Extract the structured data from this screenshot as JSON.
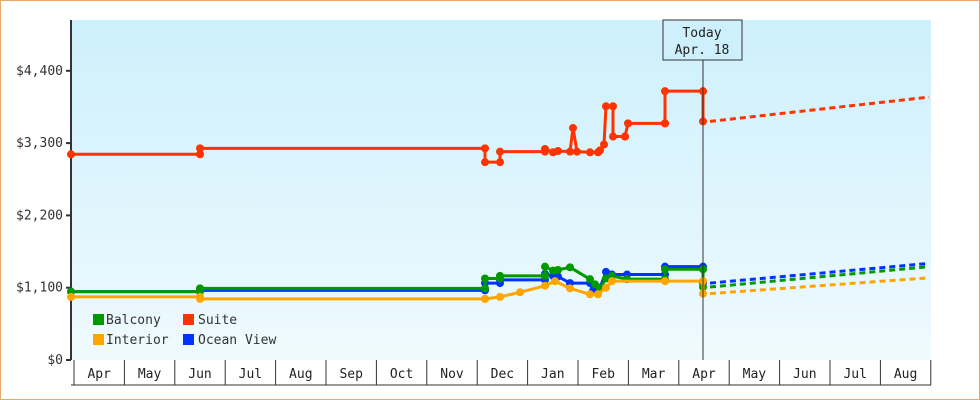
{
  "chart_data": {
    "type": "line",
    "title": "",
    "xlabel": "",
    "ylabel": "",
    "ylim": [
      0,
      4800
    ],
    "y_ticks": [
      "$0",
      "$1,100",
      "$2,200",
      "$3,300",
      "$4,400"
    ],
    "y_tick_values": [
      0,
      1100,
      2200,
      3300,
      4400
    ],
    "x_ticks": [
      "Apr",
      "May",
      "Jun",
      "Jul",
      "Aug",
      "Sep",
      "Oct",
      "Nov",
      "Dec",
      "Jan",
      "Feb",
      "Mar",
      "Apr",
      "May",
      "Jun",
      "Jul",
      "Aug"
    ],
    "grid": false,
    "legend_position": "lower-left inside",
    "today_marker": {
      "line1": "Today",
      "line2": "Apr. 18"
    },
    "legend": [
      {
        "name": "Balcony",
        "color": "#009900"
      },
      {
        "name": "Suite",
        "color": "#ff3300"
      },
      {
        "name": "Interior",
        "color": "#ffa500"
      },
      {
        "name": "Ocean View",
        "color": "#0033ff"
      }
    ],
    "series": [
      {
        "name": "Suite",
        "color": "#ff3300",
        "points": [
          [
            "Apr",
            3130
          ],
          [
            "early Jun",
            3130
          ],
          [
            "early Jun",
            3220
          ],
          [
            "late Nov",
            3220
          ],
          [
            "late Nov",
            3010
          ],
          [
            "early Dec",
            3010
          ],
          [
            "early Dec",
            3170
          ],
          [
            "mid Jan",
            3170
          ],
          [
            "mid Jan",
            3210
          ],
          [
            "Jan",
            3160
          ],
          [
            "Jan",
            3180
          ],
          [
            "late Jan",
            3170
          ],
          [
            "late Jan",
            3530
          ],
          [
            "late Jan",
            3170
          ],
          [
            "early Feb",
            3160
          ],
          [
            "Feb",
            3160
          ],
          [
            "Feb",
            3190
          ],
          [
            "Feb",
            3280
          ],
          [
            "Feb",
            3860
          ],
          [
            "Feb",
            3860
          ],
          [
            "Feb",
            3400
          ],
          [
            "Feb",
            3400
          ],
          [
            "late Feb",
            3400
          ],
          [
            "late Feb",
            3600
          ],
          [
            "Mar",
            3600
          ],
          [
            "late Mar",
            3600
          ],
          [
            "late Mar",
            4090
          ],
          [
            "Apr 18",
            4090
          ],
          [
            "Apr 18",
            3630
          ]
        ],
        "forecast": [
          [
            "Apr 18",
            3630
          ],
          [
            "end Aug",
            4000
          ]
        ]
      },
      {
        "name": "Ocean View",
        "color": "#0033ff",
        "points": [
          [
            "Apr",
            1040
          ],
          [
            "early Jun",
            1040
          ],
          [
            "early Jun",
            1060
          ],
          [
            "late Nov",
            1060
          ],
          [
            "late Nov",
            1170
          ],
          [
            "Dec",
            1170
          ],
          [
            "Dec",
            1220
          ],
          [
            "mid Jan",
            1220
          ],
          [
            "mid Jan",
            1310
          ],
          [
            "Jan",
            1280
          ],
          [
            "Jan",
            1270
          ],
          [
            "early Feb",
            1170
          ],
          [
            "Feb",
            1170
          ],
          [
            "Feb",
            1050
          ],
          [
            "Feb",
            1100
          ],
          [
            "Feb",
            1340
          ],
          [
            "Feb",
            1300
          ],
          [
            "late Feb",
            1300
          ],
          [
            "late Mar",
            1300
          ],
          [
            "late Mar",
            1420
          ],
          [
            "Apr 18",
            1420
          ],
          [
            "Apr 18",
            1170
          ]
        ],
        "forecast": [
          [
            "Apr 18",
            1170
          ],
          [
            "end Aug",
            1470
          ]
        ]
      },
      {
        "name": "Balcony",
        "color": "#009900",
        "points": [
          [
            "Apr",
            1040
          ],
          [
            "early Jun",
            1040
          ],
          [
            "early Jun",
            1090
          ],
          [
            "late Nov",
            1090
          ],
          [
            "late Nov",
            1240
          ],
          [
            "Dec",
            1240
          ],
          [
            "Dec",
            1280
          ],
          [
            "mid Jan",
            1280
          ],
          [
            "mid Jan",
            1420
          ],
          [
            "Jan",
            1360
          ],
          [
            "Jan",
            1370
          ],
          [
            "late Jan",
            1410
          ],
          [
            "early Feb",
            1230
          ],
          [
            "Feb",
            1150
          ],
          [
            "Feb",
            1090
          ],
          [
            "Feb",
            1240
          ],
          [
            "Feb",
            1280
          ],
          [
            "late Feb",
            1230
          ],
          [
            "late Mar",
            1230
          ],
          [
            "late Mar",
            1380
          ],
          [
            "Apr 18",
            1380
          ],
          [
            "Apr 18",
            1110
          ]
        ],
        "forecast": [
          [
            "Apr 18",
            1110
          ],
          [
            "end Aug",
            1420
          ]
        ]
      },
      {
        "name": "Interior",
        "color": "#ffa500",
        "points": [
          [
            "Apr",
            960
          ],
          [
            "early Jun",
            960
          ],
          [
            "early Jun",
            930
          ],
          [
            "late Nov",
            930
          ],
          [
            "late Nov",
            930
          ],
          [
            "Dec",
            960
          ],
          [
            "Dec",
            1030
          ],
          [
            "mid Jan",
            1130
          ],
          [
            "Jan",
            1200
          ],
          [
            "Jan",
            1090
          ],
          [
            "Feb",
            1000
          ],
          [
            "Feb",
            1000
          ],
          [
            "Feb",
            1100
          ],
          [
            "late Feb",
            1200
          ],
          [
            "late Mar",
            1200
          ],
          [
            "Apr 18",
            1200
          ],
          [
            "Apr 18",
            1010
          ]
        ],
        "forecast": [
          [
            "Apr 18",
            1010
          ],
          [
            "end Aug",
            1250
          ]
        ]
      }
    ]
  }
}
